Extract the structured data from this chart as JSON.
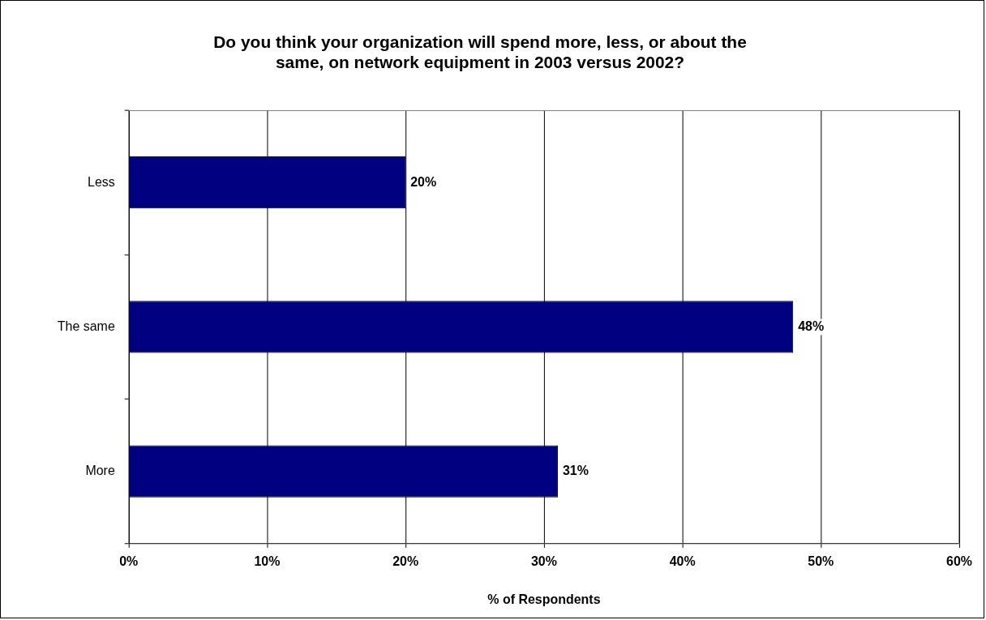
{
  "chart_data": {
    "type": "bar",
    "orientation": "horizontal",
    "title": [
      "Do you think your organization will spend more, less, or about the",
      "same, on network equipment in 2003 versus 2002?"
    ],
    "categories": [
      "Less",
      "The same",
      "More"
    ],
    "values": [
      20,
      48,
      31
    ],
    "value_labels": [
      "20%",
      "48%",
      "31%"
    ],
    "color": "#000080",
    "xlabel": "% of Respondents",
    "xlim": [
      0,
      60
    ],
    "xticks": [
      {
        "value": 0,
        "label": "0%"
      },
      {
        "value": 10,
        "label": "10%"
      },
      {
        "value": 20,
        "label": "20%"
      },
      {
        "value": 30,
        "label": "30%"
      },
      {
        "value": 40,
        "label": "40%"
      },
      {
        "value": 50,
        "label": "50%"
      },
      {
        "value": 60,
        "label": "60%"
      }
    ],
    "grid": "x"
  }
}
